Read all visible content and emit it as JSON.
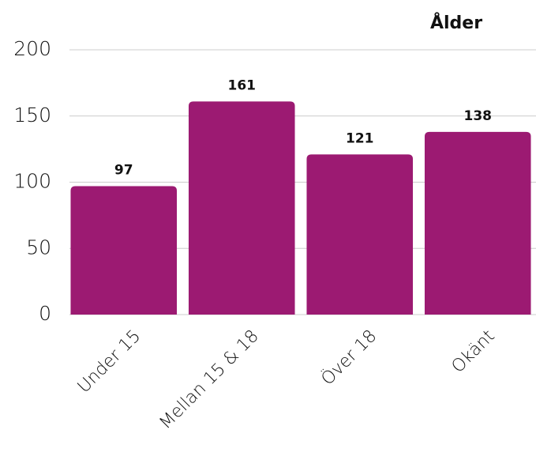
{
  "chart_data": {
    "type": "bar",
    "title": "Ålder",
    "categories": [
      "Under 15",
      "Mellan 15 & 18",
      "Över 18",
      "Okänt"
    ],
    "values": [
      97,
      161,
      121,
      138
    ],
    "color": "#9c1a72",
    "ylim": [
      0,
      200
    ],
    "yticks": [
      0,
      50,
      100,
      150,
      200
    ],
    "grid": true
  }
}
